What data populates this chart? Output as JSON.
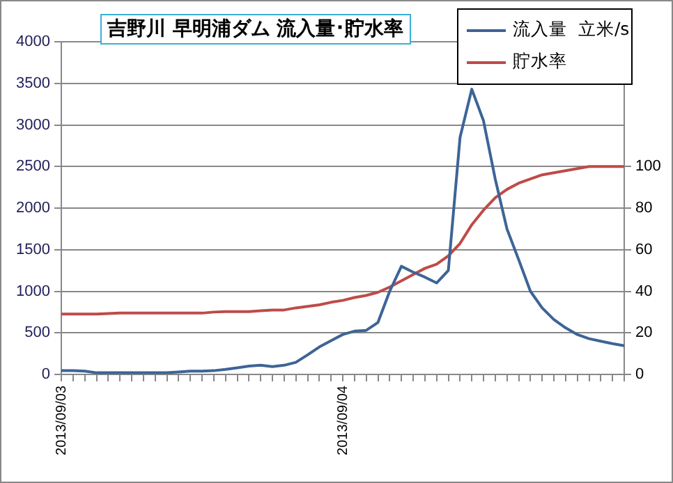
{
  "chart_data": {
    "type": "line",
    "title": "吉野川 早明浦ダム 流入量･貯水率",
    "categories": [
      "2013/09/03",
      null,
      null,
      null,
      null,
      null,
      null,
      null,
      null,
      null,
      null,
      null,
      null,
      null,
      null,
      null,
      null,
      null,
      null,
      null,
      null,
      null,
      null,
      null,
      "2013/09/04",
      null,
      null,
      null,
      null,
      null,
      null,
      null,
      null,
      null,
      null,
      null,
      null,
      null,
      null,
      null,
      null,
      null,
      null,
      null,
      null,
      null,
      null,
      null,
      null
    ],
    "series": [
      {
        "name": "流入量  立米/s",
        "color": "#3d6496",
        "values": [
          45,
          45,
          40,
          20,
          20,
          20,
          20,
          20,
          20,
          20,
          30,
          40,
          40,
          45,
          60,
          80,
          100,
          110,
          95,
          110,
          145,
          235,
          330,
          405,
          480,
          520,
          530,
          625,
          1000,
          1300,
          1230,
          1170,
          1100,
          1250,
          2850,
          3430,
          3050,
          2350,
          1750,
          1380,
          1000,
          800,
          660,
          560,
          480,
          430,
          400,
          370,
          345
        ]
      },
      {
        "name": "貯水率",
        "color": "#be4b48",
        "axis": "y2",
        "values": [
          29,
          29,
          29,
          29,
          29.3,
          29.5,
          29.5,
          29.5,
          29.5,
          29.5,
          29.5,
          29.5,
          29.5,
          30,
          30.2,
          30.2,
          30.2,
          30.6,
          31,
          31,
          32,
          32.7,
          33.5,
          34.7,
          35.6,
          37,
          38,
          39.5,
          42,
          45,
          48,
          51,
          53,
          57,
          63,
          72,
          79,
          85,
          89,
          92,
          94,
          96,
          97,
          98,
          99,
          100,
          100,
          100,
          100
        ]
      }
    ],
    "ylim": [
      0,
      4000
    ],
    "yticks": [
      0,
      500,
      1000,
      1500,
      2000,
      2500,
      3000,
      3500,
      4000
    ],
    "y2lim": [
      0,
      160
    ],
    "y2ticks": [
      0,
      20,
      40,
      60,
      80,
      100
    ],
    "grid": "y",
    "legend": "top right",
    "marker": "none"
  }
}
